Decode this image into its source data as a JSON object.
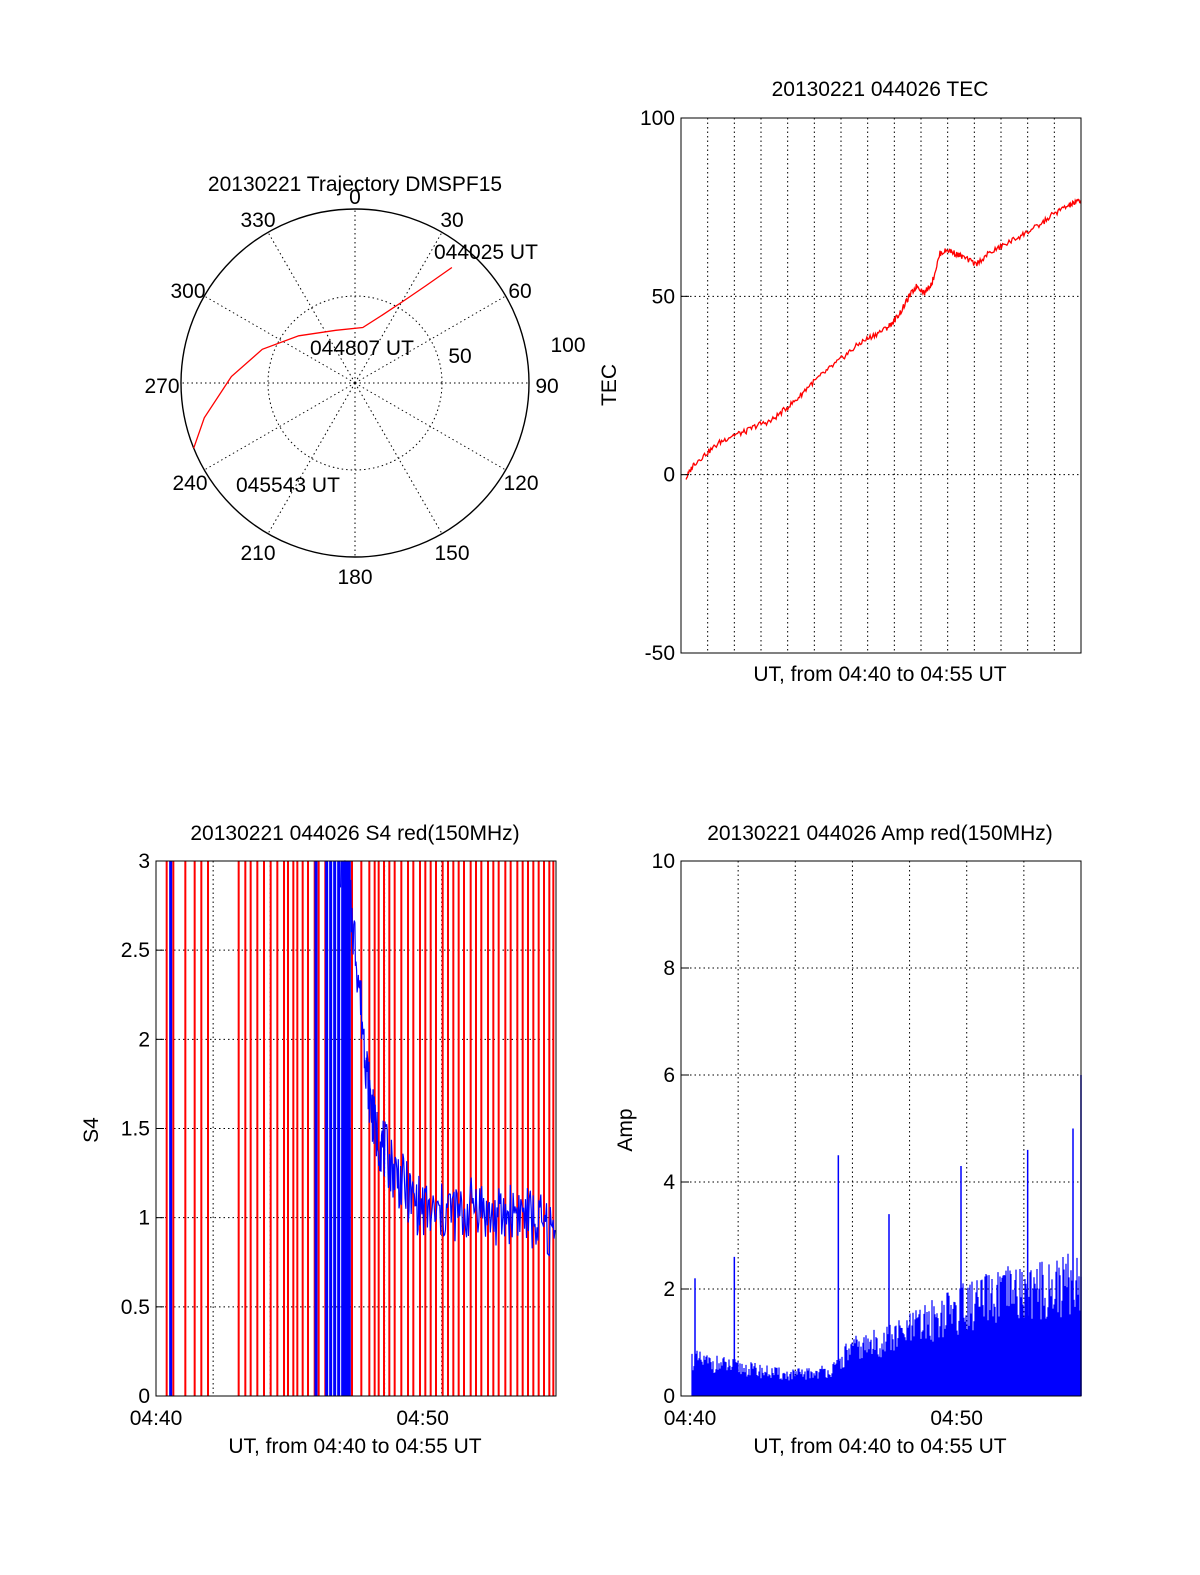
{
  "chart_data": [
    {
      "type": "polar",
      "title": "20130221 Trajectory DMSPF15",
      "azimuth_labels": [
        "0",
        "30",
        "60",
        "90",
        "120",
        "150",
        "180",
        "210",
        "240",
        "270",
        "300",
        "330"
      ],
      "radial_labels": [
        "50",
        "100"
      ],
      "grid": true,
      "series": [
        {
          "color": "#ff0000",
          "points": [
            {
              "az": 40,
              "zen": 78
            },
            {
              "az": 36,
              "zen": 62
            },
            {
              "az": 31,
              "zen": 50
            },
            {
              "az": 22,
              "zen": 38
            },
            {
              "az": 8,
              "zen": 29
            },
            {
              "az": 340,
              "zen": 29
            },
            {
              "az": 310,
              "zen": 38
            },
            {
              "az": 290,
              "zen": 51
            },
            {
              "az": 273,
              "zen": 64
            },
            {
              "az": 257,
              "zen": 80
            },
            {
              "az": 248,
              "zen": 90
            }
          ]
        }
      ],
      "annotations": [
        "044025 UT",
        "044807 UT",
        "045543 UT"
      ]
    },
    {
      "type": "line",
      "title": "20130221 044026 TEC",
      "xlabel": "UT, from 04:40 to 04:55 UT",
      "ylabel": "TEC",
      "xlim": [
        0,
        15.6
      ],
      "ylim": [
        -50,
        100
      ],
      "yticks": [
        "100",
        "50",
        "0",
        "-50"
      ],
      "grid": true,
      "series": [
        {
          "color": "#ff0000",
          "x": [
            0.2,
            0.5,
            1.0,
            1.5,
            2.0,
            2.5,
            3.0,
            3.5,
            4.0,
            4.5,
            5.0,
            5.5,
            6.0,
            6.5,
            7.0,
            7.5,
            8.0,
            8.3,
            8.6,
            8.9,
            9.2,
            9.5,
            9.8,
            10.1,
            10.4,
            10.7,
            11.0,
            11.5,
            12.0,
            12.5,
            13.0,
            13.5,
            14.0,
            14.5,
            15.0,
            15.3,
            15.6
          ],
          "y": [
            -1,
            3,
            6,
            9,
            11,
            12,
            14,
            15,
            18,
            21,
            25,
            28,
            31,
            34,
            37,
            39,
            41,
            43,
            46,
            50,
            53,
            51,
            54,
            62,
            63,
            62,
            61,
            59,
            62,
            64,
            66,
            68,
            70,
            73,
            75,
            76,
            77
          ]
        }
      ]
    },
    {
      "type": "line",
      "title": "20130221 044026 S4 red(150MHz)",
      "xlabel": "UT, from 04:40 to 04:55 UT",
      "ylabel": "S4",
      "xlim": [
        0,
        15
      ],
      "ylim": [
        0,
        3
      ],
      "xticks": [
        "04:40",
        "04:50"
      ],
      "yticks": [
        "3",
        "2.5",
        "2",
        "1.5",
        "1",
        "0.5",
        "0"
      ],
      "grid": true,
      "red_spikes_x": [
        0.4,
        0.65,
        1.1,
        1.45,
        1.7,
        1.95,
        3.1,
        3.35,
        3.55,
        3.8,
        4.05,
        4.3,
        4.55,
        4.8,
        4.95,
        5.15,
        5.3,
        5.5,
        5.7,
        5.95,
        6.1,
        6.35,
        7.15,
        7.35,
        7.7,
        8.0,
        8.2,
        8.35,
        8.55,
        8.75,
        8.95,
        9.2,
        9.45,
        9.65,
        9.9,
        10.1,
        10.3,
        10.5,
        10.75,
        10.95,
        11.15,
        11.35,
        11.55,
        11.8,
        12.0,
        12.2,
        12.45,
        12.65,
        12.85,
        13.1,
        13.3,
        13.55,
        13.75,
        13.95,
        14.15,
        14.35,
        14.55,
        14.75,
        14.9
      ],
      "blue_spikes_x": [
        0.55,
        6.0,
        6.4,
        6.55,
        6.7,
        6.85,
        7.0,
        7.1,
        7.2,
        7.25
      ],
      "blue_series": {
        "color": "#0000ff",
        "x": [
          6.9,
          7.2,
          7.5,
          7.8,
          8.0,
          8.2,
          8.5,
          8.8,
          9.2,
          9.6,
          10.0,
          10.5,
          11.0,
          11.5,
          12.0,
          12.5,
          13.0,
          13.5,
          14.0,
          14.5,
          15.0
        ],
        "y": [
          3.0,
          2.85,
          2.5,
          2.0,
          1.7,
          1.5,
          1.4,
          1.3,
          1.2,
          1.1,
          1.05,
          1.0,
          1.05,
          1.0,
          1.1,
          1.0,
          1.0,
          1.05,
          1.0,
          0.95,
          0.9
        ]
      }
    },
    {
      "type": "bar",
      "title": "20130221 044026 Amp red(150MHz)",
      "xlabel": "UT, from 04:40 to 04:55 UT",
      "ylabel": "Amp",
      "xlim": [
        0,
        15
      ],
      "ylim": [
        0,
        10
      ],
      "xticks": [
        "04:40",
        "04:50"
      ],
      "yticks": [
        "10",
        "8",
        "6",
        "4",
        "2",
        "0"
      ],
      "grid": true,
      "series": [
        {
          "color": "#0000ff",
          "x": [
            0.2,
            1,
            2,
            3,
            4,
            5,
            5.8,
            6.3,
            7,
            8,
            9,
            10,
            11,
            12,
            13,
            14,
            15
          ],
          "y": [
            0.9,
            0.8,
            0.7,
            0.6,
            0.5,
            0.55,
            0.65,
            1.1,
            1.2,
            1.4,
            1.7,
            2.0,
            2.2,
            2.4,
            2.5,
            2.6,
            2.8
          ]
        }
      ],
      "peaks": [
        {
          "x": 0.15,
          "y": 2.2
        },
        {
          "x": 2.0,
          "y": 2.6
        },
        {
          "x": 5.9,
          "y": 4.5
        },
        {
          "x": 7.8,
          "y": 3.4
        },
        {
          "x": 10.5,
          "y": 4.3
        },
        {
          "x": 13.0,
          "y": 4.6
        },
        {
          "x": 14.7,
          "y": 5.0
        },
        {
          "x": 15.0,
          "y": 6.0
        }
      ]
    }
  ]
}
